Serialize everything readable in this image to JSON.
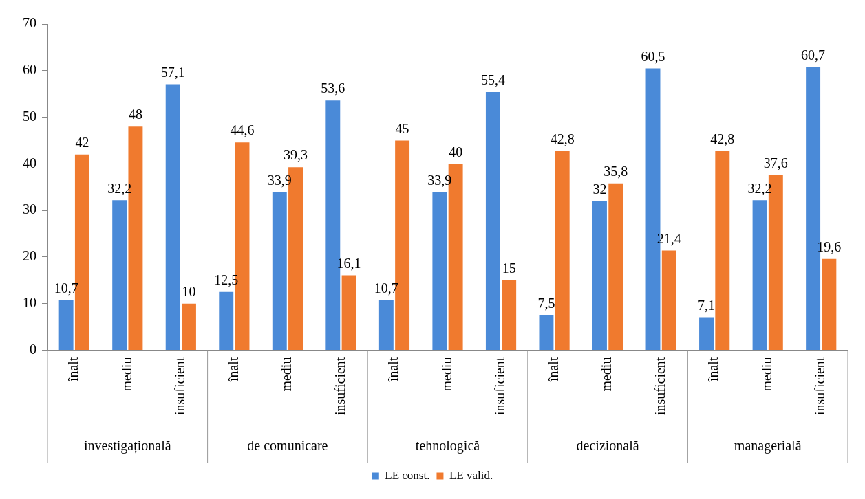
{
  "chart_data": {
    "type": "bar",
    "categories": [
      "înalt",
      "mediu",
      "insuficient",
      "înalt",
      "mediu",
      "insuficient",
      "înalt",
      "mediu",
      "insuficient",
      "înalt",
      "mediu",
      "insuficient",
      "înalt",
      "mediu",
      "insuficient"
    ],
    "series": [
      {
        "name": "LE const.",
        "color": "#4a8ad8",
        "values": [
          10.7,
          32.2,
          57.1,
          12.5,
          33.9,
          53.6,
          10.7,
          33.9,
          55.4,
          7.5,
          32,
          60.5,
          7.1,
          32.2,
          60.7
        ],
        "value_labels": [
          "10,7",
          "32,2",
          "57,1",
          "12,5",
          "33,9",
          "53,6",
          "10,7",
          "33,9",
          "55,4",
          "7,5",
          "32",
          "60,5",
          "7,1",
          "32,2",
          "60,7"
        ]
      },
      {
        "name": "LE valid.",
        "color": "#f07a2e",
        "values": [
          42,
          48,
          10,
          44.6,
          39.3,
          16.1,
          45,
          40,
          15,
          42.8,
          35.8,
          21.4,
          42.8,
          37.6,
          19.6
        ],
        "value_labels": [
          "42",
          "48",
          "10",
          "44,6",
          "39,3",
          "16,1",
          "45",
          "40",
          "15",
          "42,8",
          "35,8",
          "21,4",
          "42,8",
          "37,6",
          "19,6"
        ]
      }
    ],
    "annotations": [
      "investigațională",
      "de comunicare",
      "tehnologică",
      "decizională",
      "managerială"
    ],
    "ylim": [
      0,
      70
    ],
    "yticks": [
      0,
      10,
      20,
      30,
      40,
      50,
      60,
      70
    ],
    "grid": false,
    "legend": "bottom"
  }
}
